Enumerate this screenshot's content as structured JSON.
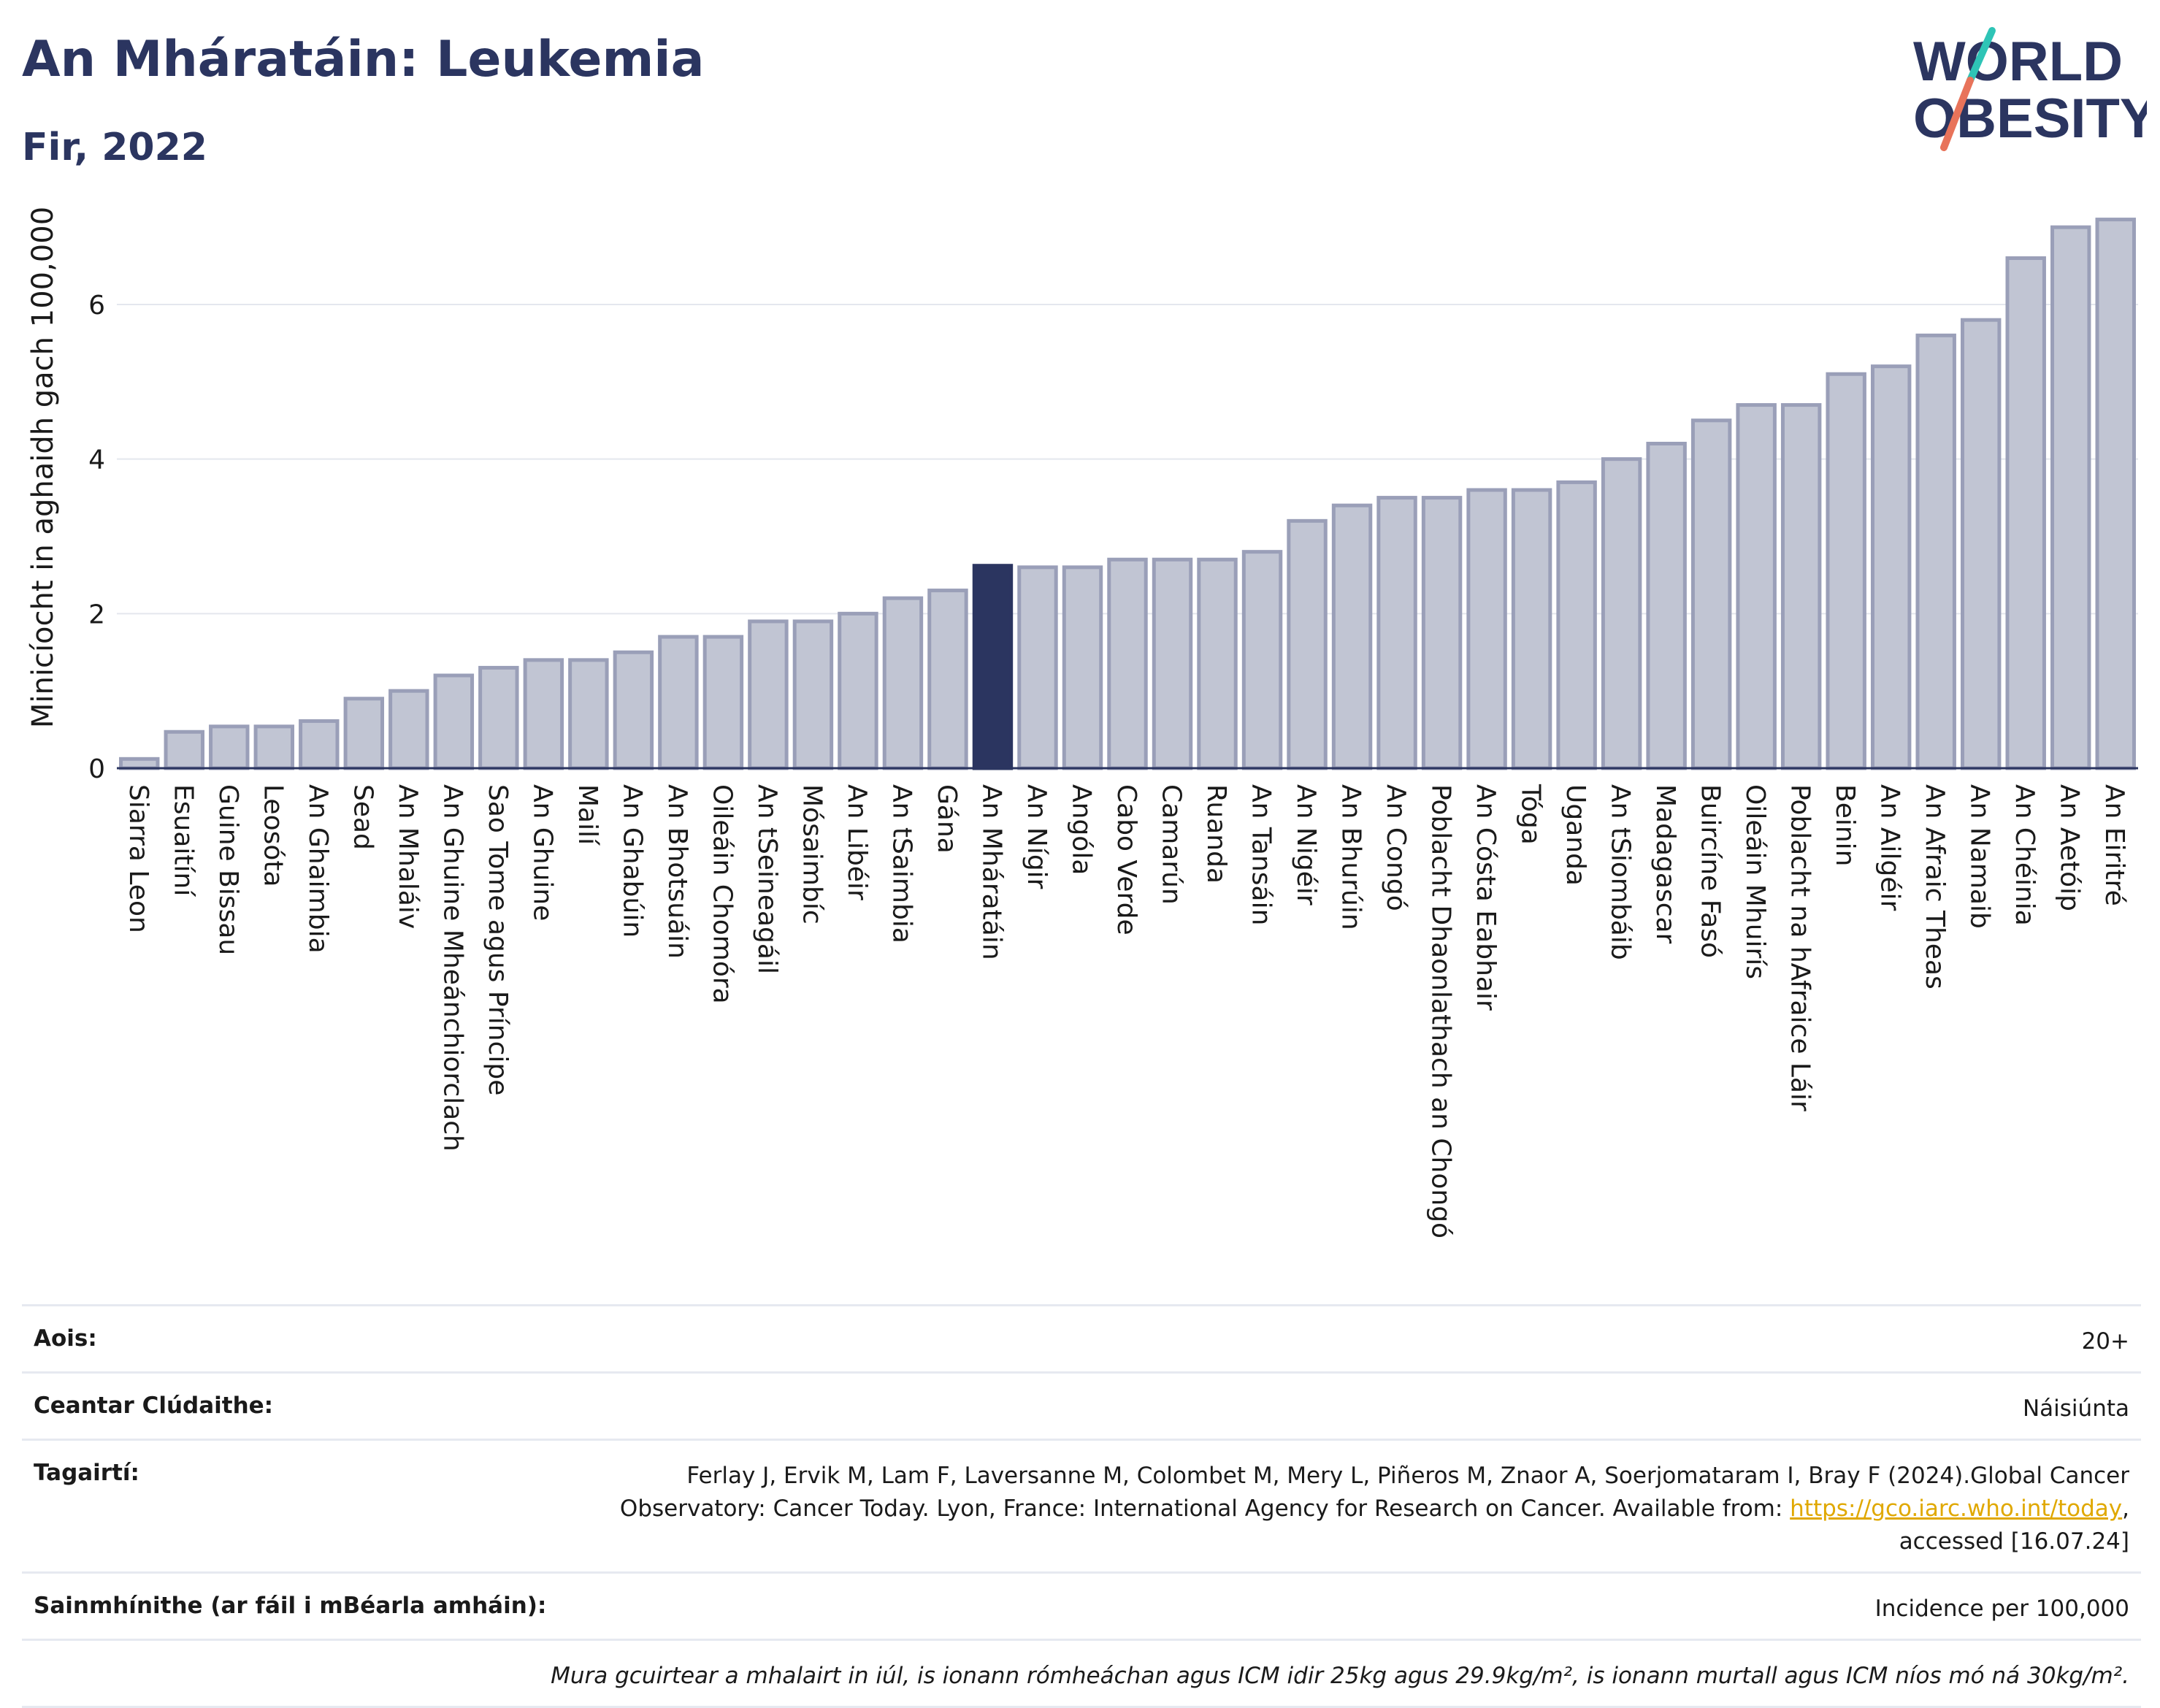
{
  "title": "An Mháratáin: Leukemia",
  "subtitle": "Fir, 2022",
  "logo": {
    "line1": "WORLD",
    "line2": "OBESITY",
    "slash_color_top": "#2ec4b6",
    "slash_color_bottom": "#e8735a",
    "text_color": "#2b3560"
  },
  "chart_data": {
    "type": "bar",
    "ylabel": "Minicíocht in aghaidh gach 100,000",
    "xlabel": "",
    "ylim": [
      0,
      7.2
    ],
    "yticks": [
      0,
      2,
      4,
      6
    ],
    "grid": true,
    "highlight": "An Mháratáin",
    "bar_color": "#c1c5d3",
    "bar_edge_color": "#9a9fb8",
    "highlight_color": "#2b3560",
    "categories": [
      "Siarra Leon",
      "Esuaitíní",
      "Guine Bissau",
      "Leosóta",
      "An Ghaimbia",
      "Sead",
      "An Mhaláiv",
      "An Ghuine Mheánchiorclach",
      "Sao Tome agus Príncipe",
      "An Ghuine",
      "Mailí",
      "An Ghabúin",
      "An Bhotsuáin",
      "Oileáin Chomóra",
      "An tSeineagáil",
      "Mósaimbíc",
      "An Libéir",
      "An tSaimbia",
      "Gána",
      "An Mháratáin",
      "An Nígir",
      "Angóla",
      "Cabo Verde",
      "Camarún",
      "Ruanda",
      "An Tansáin",
      "An Nigéir",
      "An Bhurúin",
      "An Congó",
      "Poblacht Dhaonlathach an Chongó",
      "An Cósta Eabhair",
      "Tóga",
      "Uganda",
      "An tSiombáib",
      "Madagascar",
      "Buircíne Fasó",
      "Oileáin Mhuirís",
      "Poblacht na hAfraice Láir",
      "Beinin",
      "An Ailgéir",
      "An Afraic Theas",
      "An Namaib",
      "An Chéinia",
      "An Aetóip",
      "An Eiritré"
    ],
    "values": [
      0.12,
      0.47,
      0.54,
      0.54,
      0.61,
      0.9,
      1.0,
      1.2,
      1.3,
      1.4,
      1.4,
      1.5,
      1.7,
      1.7,
      1.9,
      1.9,
      2.0,
      2.2,
      2.3,
      2.62,
      2.6,
      2.6,
      2.7,
      2.7,
      2.7,
      2.8,
      3.2,
      3.4,
      3.5,
      3.5,
      3.6,
      3.6,
      3.7,
      4.0,
      4.2,
      4.5,
      4.7,
      4.7,
      5.1,
      5.2,
      5.6,
      5.8,
      6.6,
      7.0,
      7.1
    ]
  },
  "meta": {
    "age_label": "Aois:",
    "age_value": "20+",
    "area_label": "Ceantar Clúdaithe:",
    "area_value": "Náisiúnta",
    "ref_label": "Tagairtí:",
    "ref_line1": "Ferlay J, Ervik M, Lam F, Laversanne M, Colombet M, Mery L, Piñeros M, Znaor A, Soerjomataram I, Bray F (2024).Global Cancer",
    "ref_line2_pre": "Observatory: Cancer Today. Lyon, France: International Agency for Research on Cancer. Available from: ",
    "ref_link": "https://gco.iarc.who.int/today",
    "ref_line2_post": ",",
    "ref_line3": "accessed [16.07.24]",
    "def_label": "Sainmhínithe (ar fáil i mBéarla amháin):",
    "def_value": "Incidence per 100,000",
    "note": "Mura gcuirtear a mhalairt in iúl, is ionann rómheáchan agus ICM idir 25kg agus 29.9kg/m², is ionann murtall agus ICM níos mó ná 30kg/m²."
  }
}
